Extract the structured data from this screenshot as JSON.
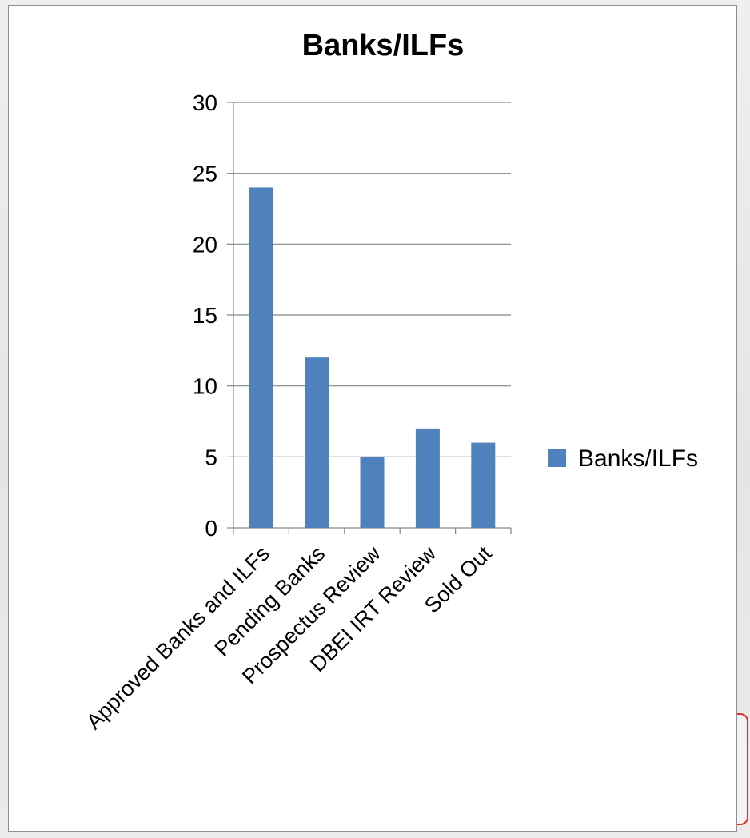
{
  "chart_data": {
    "type": "bar",
    "title": "Banks/ILFs",
    "categories": [
      "Approved Banks and ILFs",
      "Pending Banks",
      "Prospectus Review",
      "DBEI IRT Review",
      "Sold Out"
    ],
    "series": [
      {
        "name": "Banks/ILFs",
        "values": [
          24,
          12,
          5,
          7,
          6
        ],
        "color": "#4f81bd"
      }
    ],
    "ylim": [
      0,
      30
    ],
    "yticks": [
      0,
      5,
      10,
      15,
      20,
      25,
      30
    ],
    "grid": true,
    "legend": "right"
  }
}
